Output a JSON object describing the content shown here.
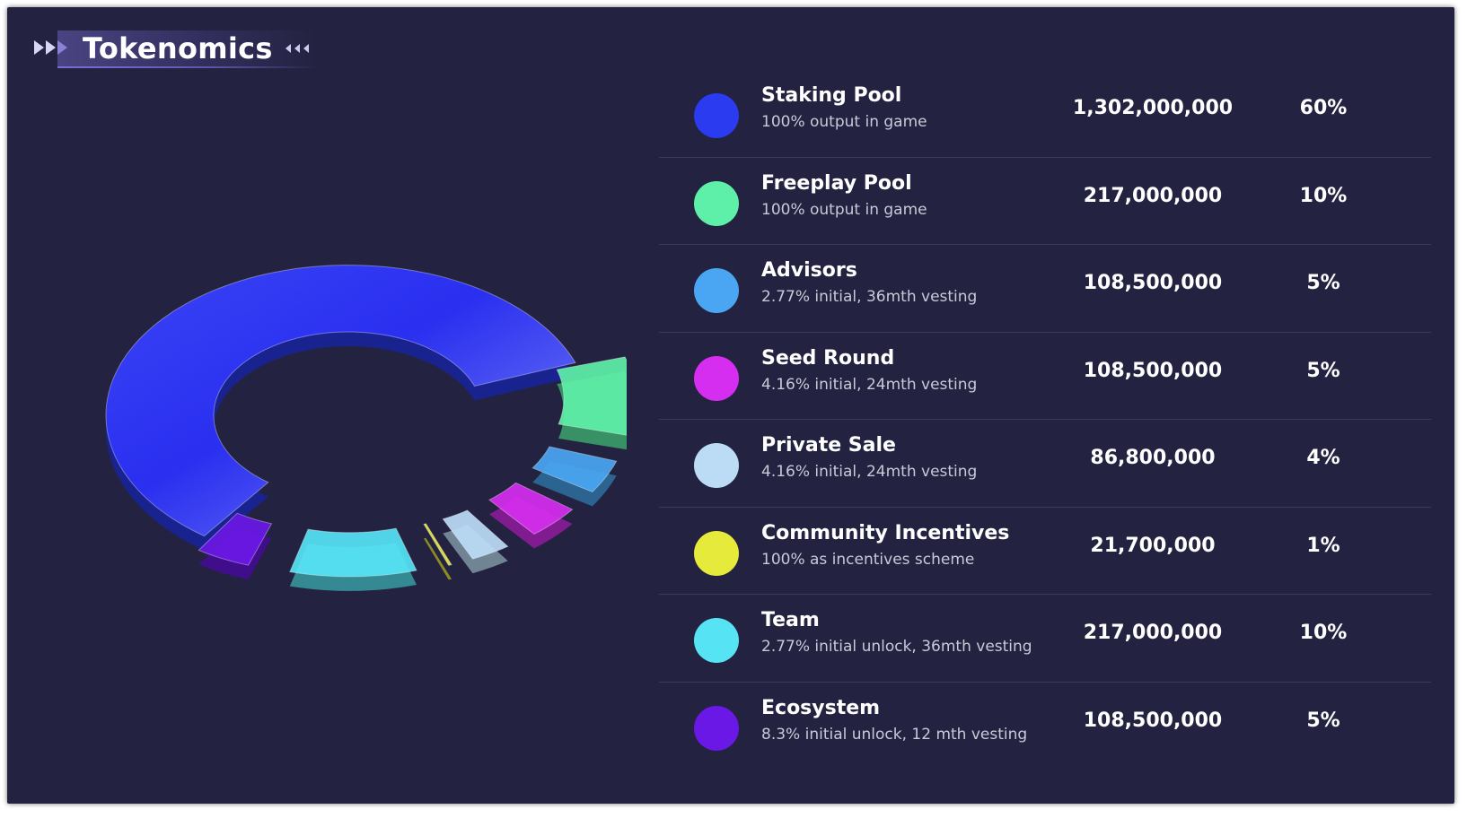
{
  "header": {
    "title": "Tokenomics"
  },
  "icons": {
    "left": "double-right-arrow-icon",
    "right": "triple-left-arrow-icon"
  },
  "rows": [
    {
      "name": "Staking Pool",
      "sub": "100% output in game",
      "amount": "1,302,000,000",
      "pct": "60%",
      "color": "#2a3bf0"
    },
    {
      "name": "Freeplay Pool",
      "sub": "100% output in game",
      "amount": "217,000,000",
      "pct": "10%",
      "color": "#5ef0a8"
    },
    {
      "name": "Advisors",
      "sub": "2.77% initial, 36mth vesting",
      "amount": "108,500,000",
      "pct": "5%",
      "color": "#4aa6f2"
    },
    {
      "name": "Seed Round",
      "sub": "4.16% initial, 24mth vesting",
      "amount": "108,500,000",
      "pct": "5%",
      "color": "#d62ef0"
    },
    {
      "name": "Private Sale",
      "sub": "4.16% initial, 24mth vesting",
      "amount": "86,800,000",
      "pct": "4%",
      "color": "#bcdcf6"
    },
    {
      "name": "Community Incentives",
      "sub": "100% as incentives scheme",
      "amount": "21,700,000",
      "pct": "1%",
      "color": "#e6ea3a"
    },
    {
      "name": "Team",
      "sub": "2.77% initial unlock, 36mth vesting",
      "amount": "217,000,000",
      "pct": "10%",
      "color": "#56e4f5"
    },
    {
      "name": "Ecosystem",
      "sub": "8.3% initial unlock, 12 mth vesting",
      "amount": "108,500,000",
      "pct": "5%",
      "color": "#6a18e6"
    }
  ],
  "chart_data": {
    "type": "pie",
    "title": "Tokenomics",
    "donut": true,
    "exploded": true,
    "categories": [
      "Staking Pool",
      "Freeplay Pool",
      "Advisors",
      "Seed Round",
      "Private Sale",
      "Community Incentives",
      "Team",
      "Ecosystem"
    ],
    "values": [
      60,
      10,
      5,
      5,
      4,
      1,
      10,
      5
    ],
    "amounts": [
      1302000000,
      217000000,
      108500000,
      108500000,
      86800000,
      21700000,
      217000000,
      108500000
    ],
    "colors": [
      "#2a3bf0",
      "#5ef0a8",
      "#4aa6f2",
      "#d62ef0",
      "#bcdcf6",
      "#e6ea3a",
      "#56e4f5",
      "#6a18e6"
    ],
    "legend": "right"
  }
}
